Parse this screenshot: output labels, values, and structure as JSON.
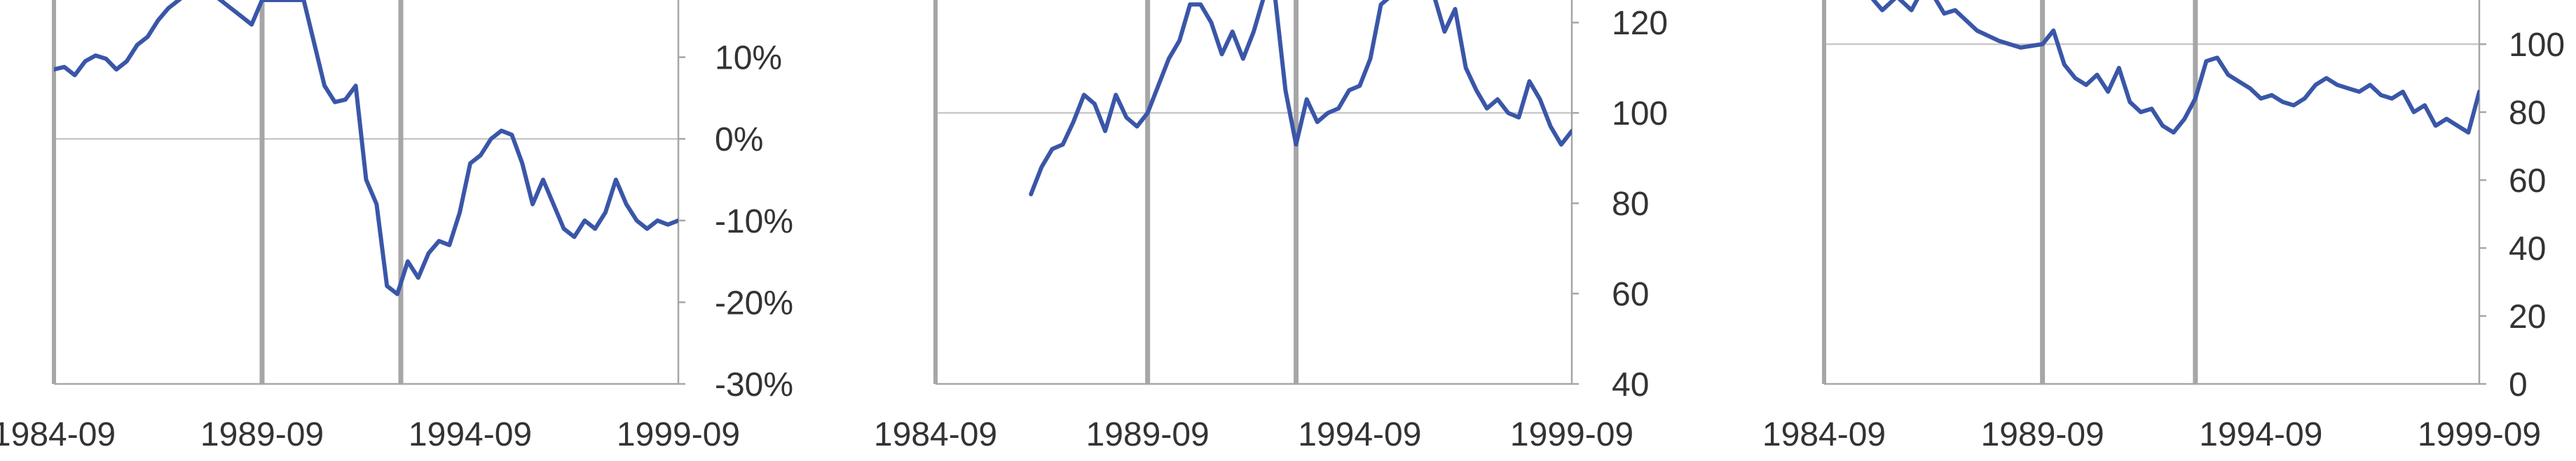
{
  "colors": {
    "line": "#3a56a8",
    "axis": "#a6a6a6",
    "gridline": "#c9c9c9",
    "text": "#333333"
  },
  "chart_data": [
    {
      "type": "line",
      "y_axis_side": "right",
      "xlim": [
        "1984-09",
        "1999-09"
      ],
      "x_tick_labels": [
        "1984-09",
        "1989-09",
        "1994-09",
        "1999-09"
      ],
      "ylim": [
        -30,
        17
      ],
      "y_ticks": [
        10,
        0,
        -10,
        -20,
        -30
      ],
      "y_tick_labels": [
        "10%",
        "0%",
        "-10%",
        "-20%",
        "-30%"
      ],
      "reference_line": 0,
      "vertical_markers": [
        "1989-09",
        "1993-01"
      ],
      "series": [
        {
          "x": [
            "1984-09",
            "1984-12",
            "1985-03",
            "1985-06",
            "1985-09",
            "1985-12",
            "1986-03",
            "1986-06",
            "1986-09",
            "1986-12",
            "1987-03",
            "1987-06",
            "1987-09",
            "1987-12",
            "1988-03",
            "1988-06",
            "1988-09",
            "1988-12",
            "1989-03",
            "1989-06",
            "1989-09",
            "1990-03",
            "1990-09",
            "1991-03",
            "1991-06",
            "1991-09",
            "1991-12",
            "1992-03",
            "1992-06",
            "1992-09",
            "1992-12",
            "1993-03",
            "1993-06",
            "1993-09",
            "1993-12",
            "1994-03",
            "1994-06",
            "1994-09",
            "1994-12",
            "1995-03",
            "1995-06",
            "1995-09",
            "1995-12",
            "1996-03",
            "1996-06",
            "1996-09",
            "1996-12",
            "1997-03",
            "1997-06",
            "1997-09",
            "1997-12",
            "1998-03",
            "1998-06",
            "1998-09",
            "1998-12",
            "1999-03",
            "1999-06",
            "1999-09"
          ],
          "y": [
            8.5,
            8.8,
            7.8,
            9.5,
            10.2,
            9.8,
            8.5,
            9.5,
            11.5,
            12.5,
            14.5,
            16,
            17,
            18,
            19,
            18,
            17,
            16,
            15,
            14,
            17,
            17,
            17,
            6.5,
            4.5,
            4.8,
            6.5,
            -5,
            -8,
            -18,
            -19,
            -15,
            -17,
            -14,
            -12.5,
            -13,
            -9,
            -3,
            -2,
            0,
            1,
            0.5,
            -3,
            -8,
            -5,
            -8,
            -11,
            -12,
            -10,
            -11,
            -9,
            -5,
            -8,
            -10,
            -11,
            -10,
            -10.5,
            -10
          ]
        }
      ]
    },
    {
      "type": "line",
      "y_axis_side": "right",
      "xlim": [
        "1984-09",
        "1999-09"
      ],
      "x_tick_labels": [
        "1984-09",
        "1989-09",
        "1994-09",
        "1999-09"
      ],
      "ylim": [
        40,
        125
      ],
      "y_ticks": [
        120,
        100,
        80,
        60,
        40
      ],
      "y_tick_labels": [
        "120",
        "100",
        "80",
        "60",
        "40"
      ],
      "reference_line": 100,
      "vertical_markers": [
        "1989-09",
        "1993-03"
      ],
      "series": [
        {
          "x": [
            "1986-12",
            "1987-03",
            "1987-06",
            "1987-09",
            "1987-12",
            "1988-03",
            "1988-06",
            "1988-09",
            "1988-12",
            "1989-03",
            "1989-06",
            "1989-09",
            "1989-12",
            "1990-03",
            "1990-06",
            "1990-09",
            "1990-12",
            "1991-03",
            "1991-06",
            "1991-09",
            "1991-12",
            "1992-03",
            "1992-06",
            "1992-09",
            "1992-12",
            "1993-03",
            "1993-06",
            "1993-09",
            "1993-12",
            "1994-03",
            "1994-06",
            "1994-09",
            "1994-12",
            "1995-03",
            "1995-06",
            "1995-09",
            "1995-12",
            "1996-03",
            "1996-06",
            "1996-09",
            "1996-12",
            "1997-03",
            "1997-06",
            "1997-09",
            "1997-12",
            "1998-03",
            "1998-06",
            "1998-09",
            "1998-12",
            "1999-03",
            "1999-06",
            "1999-09"
          ],
          "y": [
            82,
            88,
            92,
            93,
            98,
            104,
            102,
            96,
            104,
            99,
            97,
            100,
            106,
            112,
            116,
            124,
            124,
            120,
            113,
            118,
            112,
            118,
            126,
            126,
            105,
            93,
            103,
            98,
            100,
            101,
            105,
            106,
            112,
            124,
            126,
            126,
            126,
            126,
            126,
            118,
            123,
            110,
            105,
            101,
            103,
            100,
            99,
            107,
            103,
            97,
            93,
            96
          ]
        }
      ]
    },
    {
      "type": "line",
      "y_axis_side": "right",
      "xlim": [
        "1984-09",
        "1999-09"
      ],
      "x_tick_labels": [
        "1984-09",
        "1989-09",
        "1994-09",
        "1999-09"
      ],
      "ylim": [
        0,
        113
      ],
      "y_ticks": [
        100,
        80,
        60,
        40,
        20,
        0
      ],
      "y_tick_labels": [
        "100",
        "80",
        "60",
        "40",
        "20",
        "0"
      ],
      "reference_line": 100,
      "vertical_markers": [
        "1989-09",
        "1993-03"
      ],
      "series": [
        {
          "x": [
            "1985-09",
            "1986-01",
            "1986-05",
            "1986-09",
            "1987-01",
            "1987-06",
            "1987-09",
            "1988-03",
            "1988-09",
            "1989-03",
            "1989-09",
            "1989-12",
            "1990-03",
            "1990-06",
            "1990-09",
            "1990-12",
            "1991-03",
            "1991-06",
            "1991-09",
            "1991-12",
            "1992-03",
            "1992-06",
            "1992-09",
            "1992-12",
            "1993-03",
            "1993-06",
            "1993-09",
            "1993-12",
            "1994-03",
            "1994-06",
            "1994-09",
            "1994-12",
            "1995-03",
            "1995-06",
            "1995-09",
            "1995-12",
            "1996-03",
            "1996-06",
            "1996-09",
            "1996-12",
            "1997-03",
            "1997-06",
            "1997-09",
            "1997-12",
            "1998-03",
            "1998-06",
            "1998-09",
            "1998-12",
            "1999-03",
            "1999-06",
            "1999-09"
          ],
          "y": [
            115,
            110,
            114,
            110,
            118,
            109,
            110,
            104,
            101,
            99,
            100,
            104,
            94,
            90,
            88,
            91,
            86,
            93,
            83,
            80,
            81,
            76,
            74,
            78,
            84,
            95,
            96,
            91,
            89,
            87,
            84,
            85,
            83,
            82,
            84,
            88,
            90,
            88,
            87,
            86,
            88,
            85,
            84,
            86,
            80,
            82,
            76,
            78,
            76,
            74,
            86
          ]
        }
      ]
    }
  ]
}
